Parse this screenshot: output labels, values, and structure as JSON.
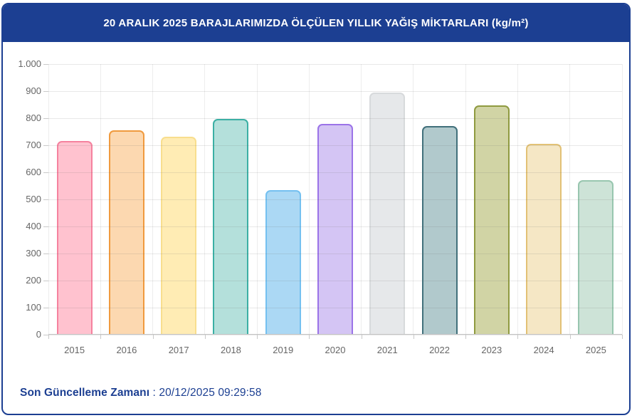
{
  "header": {
    "title": "20 ARALIK 2025 BARAJLARIMIZDA ÖLÇÜLEN YILLIK YAĞIŞ MİKTARLARI (kg/m²)"
  },
  "chart_data": {
    "type": "bar",
    "title": "20 ARALIK 2025 BARAJLARIMIZDA ÖLÇÜLEN YILLIK YAĞIŞ MİKTARLARI (kg/m²)",
    "categories": [
      "2015",
      "2016",
      "2017",
      "2018",
      "2019",
      "2020",
      "2021",
      "2022",
      "2023",
      "2024",
      "2025"
    ],
    "values": [
      717,
      755,
      732,
      797,
      533,
      778,
      896,
      771,
      848,
      704,
      570
    ],
    "xlabel": "",
    "ylabel": "",
    "ylim": [
      0,
      1000
    ],
    "y_tick_step": 100,
    "y_tick_labels": [
      "0",
      "100",
      "200",
      "300",
      "400",
      "500",
      "600",
      "700",
      "800",
      "900",
      "1.000"
    ],
    "grid": true,
    "legend": "none",
    "bar_colors": [
      {
        "fill": "#FFC2CF",
        "border": "#F5829F"
      },
      {
        "fill": "#FCD8B0",
        "border": "#F09A3E"
      },
      {
        "fill": "#FFECB4",
        "border": "#F8DE8E"
      },
      {
        "fill": "#B4E0DB",
        "border": "#3BAFA4"
      },
      {
        "fill": "#ABD8F4",
        "border": "#74C0F0"
      },
      {
        "fill": "#D4C5F4",
        "border": "#9B73E8"
      },
      {
        "fill": "#E6E8EA",
        "border": "#D7DADC"
      },
      {
        "fill": "#B1C9CC",
        "border": "#41707B"
      },
      {
        "fill": "#D1D4A5",
        "border": "#8F9A40"
      },
      {
        "fill": "#F5E7C5",
        "border": "#E2C175"
      },
      {
        "fill": "#CDE3D7",
        "border": "#98C6AF"
      }
    ]
  },
  "footer": {
    "label": "Son Güncelleme Zamanı",
    "separator": " : ",
    "datetime": "20/12/2025 09:29:58"
  },
  "colors": {
    "navy": "#1c3f92",
    "title_text": "#ffffff",
    "axis_label": "#666666",
    "background": "#ffffff"
  }
}
